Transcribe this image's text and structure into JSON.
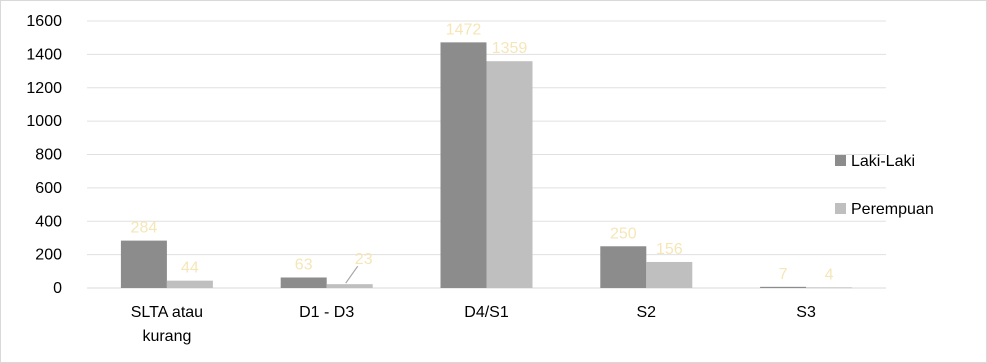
{
  "chart_data": {
    "type": "bar",
    "categories": [
      [
        "SLTA atau",
        "kurang"
      ],
      [
        "D1 - D3"
      ],
      [
        "D4/S1"
      ],
      [
        "S2"
      ],
      [
        "S3"
      ]
    ],
    "series": [
      {
        "name": "Laki-Laki",
        "values": [
          284,
          63,
          1472,
          250,
          7
        ],
        "color": "#8c8c8c"
      },
      {
        "name": "Perempuan",
        "values": [
          44,
          23,
          1359,
          156,
          4
        ],
        "color": "#bfbfbf"
      }
    ],
    "title": "",
    "xlabel": "",
    "ylabel": "",
    "ylim": [
      0,
      1600
    ],
    "yticks": [
      0,
      200,
      400,
      600,
      800,
      1000,
      1200,
      1400,
      1600
    ],
    "grid": true,
    "legend_position": "right",
    "data_label_color": "#f5e6b8",
    "axis_color": "#d9d9d9",
    "grid_color": "#e0e0e0"
  }
}
